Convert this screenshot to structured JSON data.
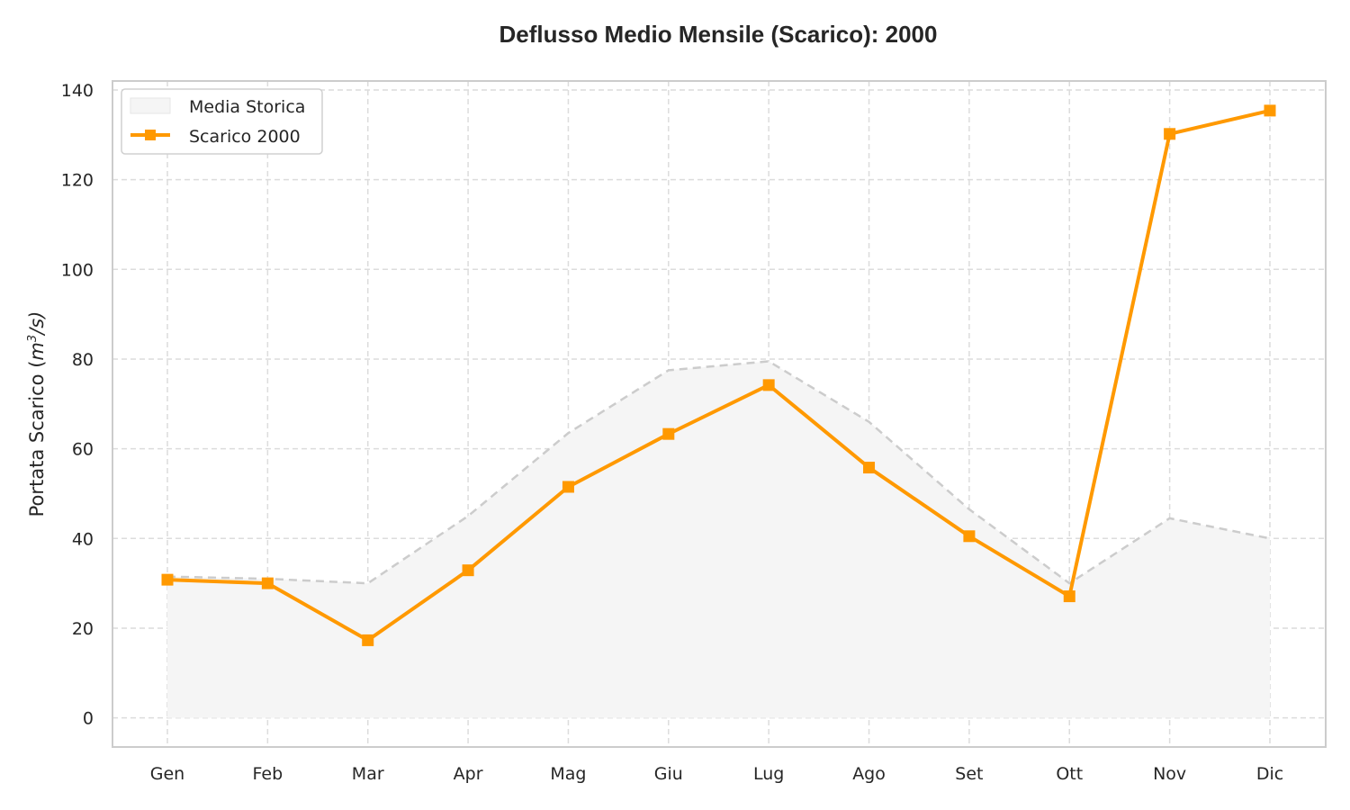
{
  "chart_data": {
    "type": "line",
    "title": "Deflusso Medio Mensile (Scarico): 2000",
    "xlabel": "",
    "ylabel": "Portata Scarico (m³/s)",
    "ylabel_main": "Portata Scarico (",
    "ylabel_unit_m": "m",
    "ylabel_unit_exp": "3",
    "ylabel_unit_rest": "/s)",
    "categories": [
      "Gen",
      "Feb",
      "Mar",
      "Apr",
      "Mag",
      "Giu",
      "Lug",
      "Ago",
      "Set",
      "Ott",
      "Nov",
      "Dic"
    ],
    "ylim": [
      -6.5,
      142
    ],
    "yticks": [
      0,
      20,
      40,
      60,
      80,
      100,
      120,
      140
    ],
    "grid": true,
    "legend_position": "top-left",
    "series": [
      {
        "name": "Media Storica",
        "style": "area-dashed",
        "color": "#cccccc",
        "fill": "#f5f5f5",
        "values": [
          31.5,
          31.0,
          30.0,
          45.0,
          63.5,
          77.5,
          79.5,
          66.0,
          46.5,
          30.0,
          44.5,
          40.0
        ]
      },
      {
        "name": "Scarico 2000",
        "style": "line-square-markers",
        "color": "#ff9900",
        "values": [
          30.8,
          30.0,
          17.3,
          32.9,
          51.5,
          63.3,
          74.2,
          55.8,
          40.5,
          27.1,
          130.2,
          135.4
        ]
      }
    ]
  }
}
